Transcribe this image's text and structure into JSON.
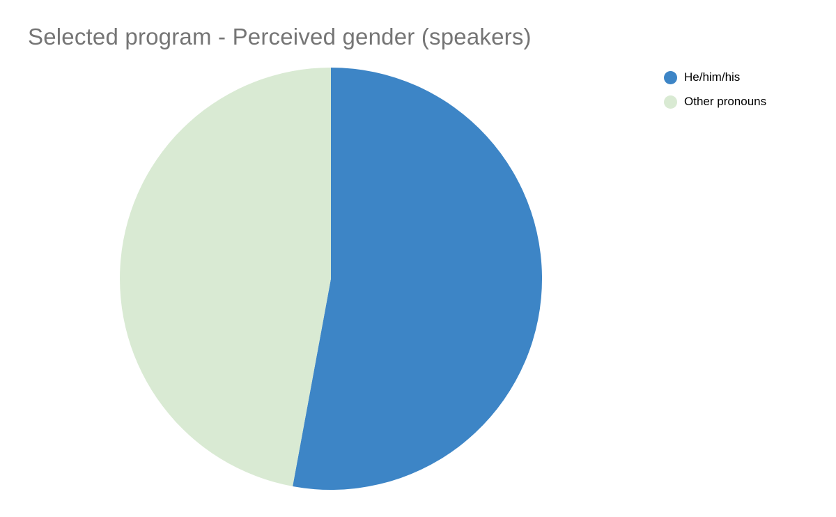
{
  "title": "Selected program - Perceived gender (speakers)",
  "chart_data": {
    "type": "pie",
    "title": "Selected program - Perceived gender (speakers)",
    "labels": [
      "He/him/his",
      "Other pronouns"
    ],
    "values": [
      52.9,
      47.1
    ],
    "unit": "percent",
    "colors": [
      "#3d85c6",
      "#d9ead3"
    ],
    "legend_position": "right",
    "start_angle_deg": 0,
    "direction": "clockwise",
    "background": "#ffffff",
    "title_color": "#757575"
  }
}
